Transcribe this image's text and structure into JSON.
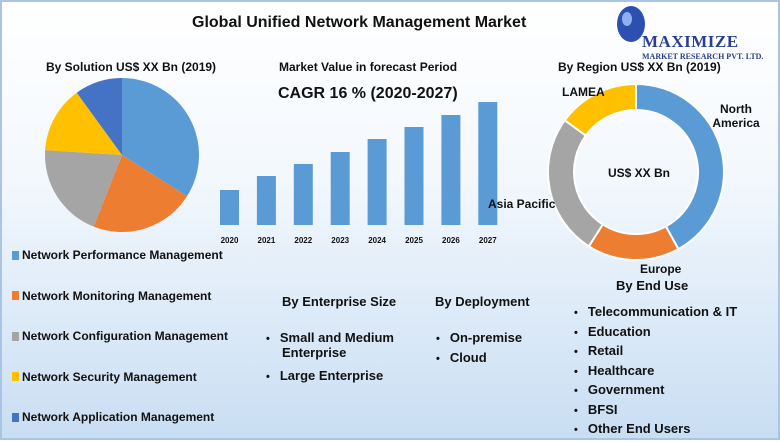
{
  "title": "Global Unified Network Management Market",
  "logo": {
    "name": "MAXIMIZE",
    "sub": "MARKET RESEARCH PVT. LTD."
  },
  "colors": {
    "blue": "#5b9bd5",
    "orange": "#ed7d31",
    "gray": "#a5a5a5",
    "yellow": "#ffc000",
    "darkblue": "#4472c4"
  },
  "chart_data": [
    {
      "type": "pie",
      "title": "By Solution  US$ XX Bn (2019)",
      "categories": [
        "Network Performance Management",
        "Network Monitoring Management",
        "Network Configuration Management",
        "Network Security Management",
        "Network Application Management"
      ],
      "values": [
        34,
        22,
        20,
        14,
        10
      ],
      "colors": [
        "#5b9bd5",
        "#ed7d31",
        "#a5a5a5",
        "#ffc000",
        "#4472c4"
      ]
    },
    {
      "type": "bar",
      "title": "Market Value in forecast Period",
      "subtitle": "CAGR 16 % (2020-2027)",
      "categories": [
        "2020",
        "2021",
        "2022",
        "2023",
        "2024",
        "2025",
        "2026",
        "2027"
      ],
      "values": [
        35,
        49,
        61,
        73,
        86,
        98,
        110,
        123
      ],
      "ylim": [
        0,
        125
      ],
      "color": "#5b9bd5"
    },
    {
      "type": "pie",
      "title": "By Region US$ XX Bn (2019)",
      "center_label": "US$ XX Bn",
      "categories": [
        "North America",
        "Europe",
        "Asia Pacific",
        "LAMEA"
      ],
      "values": [
        42,
        17,
        26,
        15
      ],
      "colors": [
        "#5b9bd5",
        "#ed7d31",
        "#a5a5a5",
        "#ffc000"
      ]
    }
  ],
  "enterprise": {
    "title": "By Enterprise Size",
    "items": [
      "Small and Medium Enterprise",
      "Large Enterprise"
    ]
  },
  "deployment": {
    "title": "By  Deployment",
    "items": [
      "On-premise",
      "Cloud"
    ]
  },
  "end_use": {
    "title": "By End Use",
    "items": [
      "Telecommunication  & IT",
      "Education",
      "Retail",
      "Healthcare",
      "Government",
      "BFSI",
      "Other End Users"
    ]
  }
}
